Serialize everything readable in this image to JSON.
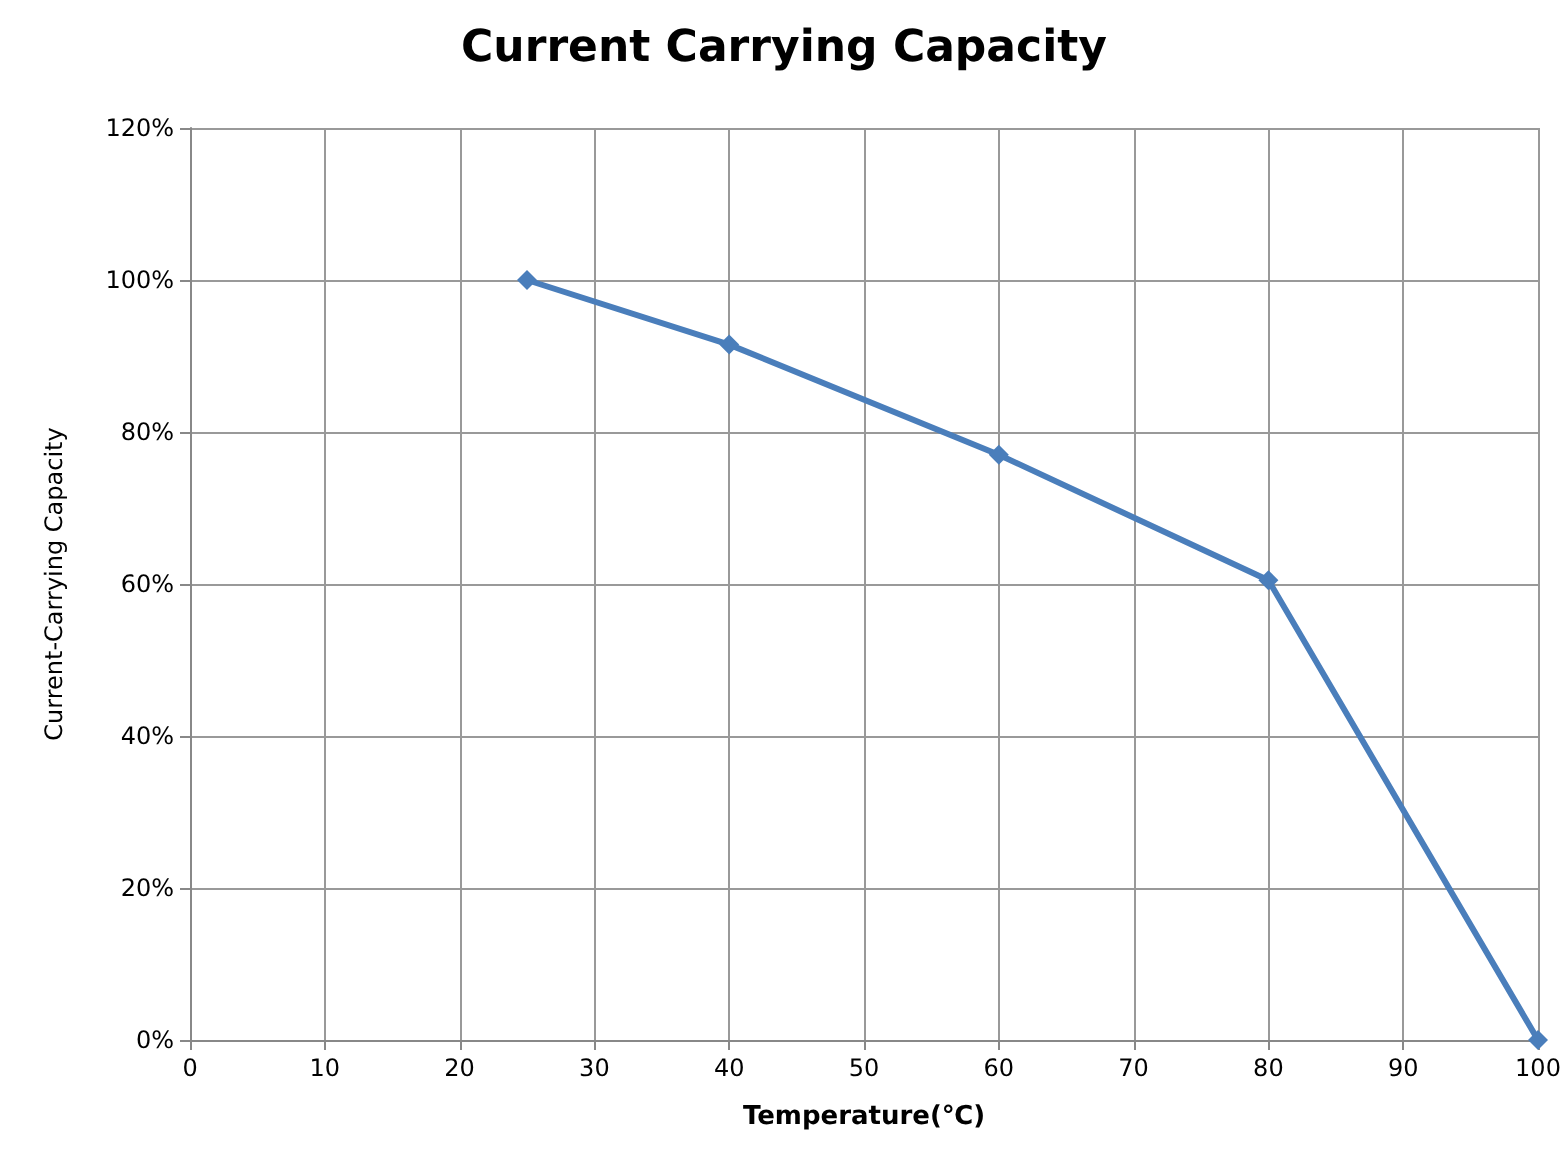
{
  "chart_data": {
    "type": "line",
    "title": "Current Carrying Capacity",
    "xlabel": "Temperature(℃)",
    "ylabel": "Current-Carrying Capacity",
    "x": [
      25,
      40,
      60,
      80,
      100
    ],
    "series": [
      {
        "color": "#4a7ebb",
        "values": [
          100,
          91.5,
          77,
          60.5,
          0
        ]
      }
    ],
    "xlim": [
      0,
      100
    ],
    "xticks": [
      0,
      10,
      20,
      30,
      40,
      50,
      60,
      70,
      80,
      90,
      100
    ],
    "ylim": [
      0,
      120
    ],
    "yticks": [
      {
        "value": 0,
        "label": "0%"
      },
      {
        "value": 20,
        "label": "20%"
      },
      {
        "value": 40,
        "label": "40%"
      },
      {
        "value": 60,
        "label": "60%"
      },
      {
        "value": 80,
        "label": "80%"
      },
      {
        "value": 100,
        "label": "100%"
      },
      {
        "value": 120,
        "label": "120%"
      }
    ],
    "grid": true,
    "marker": "diamond",
    "line_style": "solid"
  }
}
